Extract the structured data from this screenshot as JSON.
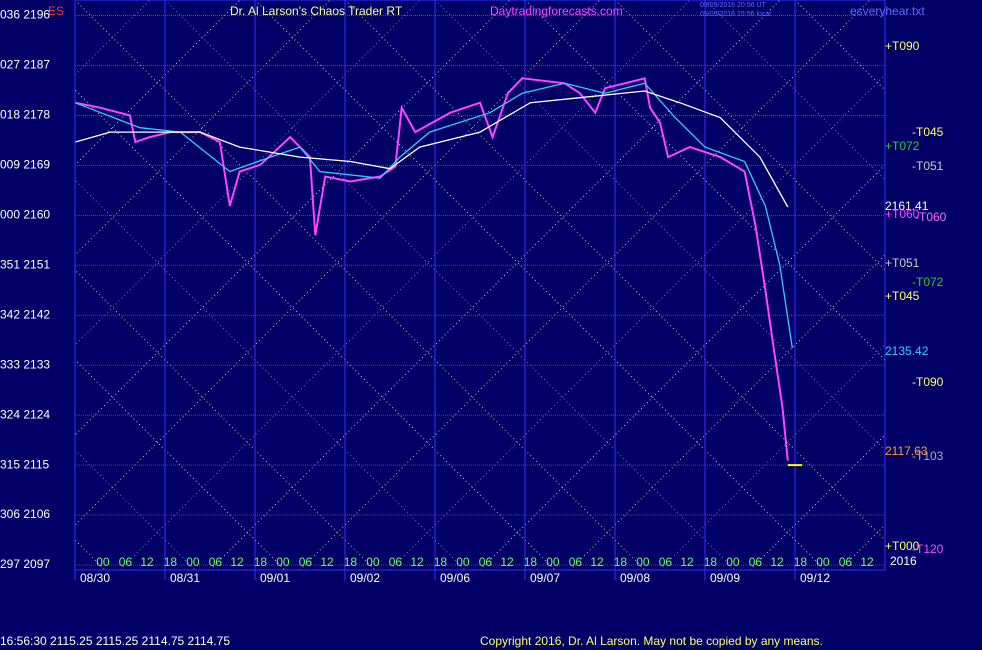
{
  "chart_data": {
    "type": "line",
    "symbol": "ES",
    "title": "Dr. Al Larson's Chaos Trader RT",
    "site": "Daytradingforecasts.com",
    "timestamps": [
      "09/09/2016 20:56 UT",
      "09/09/2016 15:56 local"
    ],
    "file": "esveryhear.txt",
    "ylim": [
      2096.1,
      2198.8
    ],
    "yticks": [
      {
        "value": 2196,
        "label": "036 2196"
      },
      {
        "value": 2187,
        "label": "027 2187"
      },
      {
        "value": 2178,
        "label": "018 2178"
      },
      {
        "value": 2169,
        "label": "009 2169"
      },
      {
        "value": 2160,
        "label": "000 2160"
      },
      {
        "value": 2151,
        "label": "351 2151"
      },
      {
        "value": 2142,
        "label": "342 2142"
      },
      {
        "value": 2133,
        "label": "333 2133"
      },
      {
        "value": 2124,
        "label": "324 2124"
      },
      {
        "value": 2115,
        "label": "315 2115"
      },
      {
        "value": 2106,
        "label": "306 2106"
      },
      {
        "value": 2097,
        "label": "297 2097"
      }
    ],
    "xlim": [
      0,
      9
    ],
    "xticks": [
      {
        "value": 0,
        "label": "08/30"
      },
      {
        "value": 1,
        "label": "08/31"
      },
      {
        "value": 2,
        "label": "09/01"
      },
      {
        "value": 3,
        "label": "09/02"
      },
      {
        "value": 4,
        "label": "09/06"
      },
      {
        "value": 5,
        "label": "09/07"
      },
      {
        "value": 6,
        "label": "09/08"
      },
      {
        "value": 7,
        "label": "09/09"
      },
      {
        "value": 8,
        "label": "09/12"
      }
    ],
    "hour_ticks": [
      {
        "value": 0.31,
        "label": "00"
      },
      {
        "value": 0.56,
        "label": "06"
      },
      {
        "value": 0.8,
        "label": "12"
      },
      {
        "value": 1.06,
        "label": "18"
      },
      {
        "value": 1.31,
        "label": "00"
      },
      {
        "value": 1.56,
        "label": "06"
      },
      {
        "value": 1.8,
        "label": "12"
      },
      {
        "value": 2.06,
        "label": "18"
      },
      {
        "value": 2.31,
        "label": "00"
      },
      {
        "value": 2.56,
        "label": "06"
      },
      {
        "value": 2.8,
        "label": "12"
      },
      {
        "value": 3.06,
        "label": "18"
      },
      {
        "value": 3.31,
        "label": "00"
      },
      {
        "value": 3.56,
        "label": "06"
      },
      {
        "value": 3.8,
        "label": "12"
      },
      {
        "value": 4.06,
        "label": "18"
      },
      {
        "value": 4.31,
        "label": "00"
      },
      {
        "value": 4.56,
        "label": "06"
      },
      {
        "value": 4.8,
        "label": "12"
      },
      {
        "value": 5.06,
        "label": "18"
      },
      {
        "value": 5.31,
        "label": "00"
      },
      {
        "value": 5.56,
        "label": "06"
      },
      {
        "value": 5.8,
        "label": "12"
      },
      {
        "value": 6.06,
        "label": "18"
      },
      {
        "value": 6.31,
        "label": "00"
      },
      {
        "value": 6.56,
        "label": "06"
      },
      {
        "value": 6.8,
        "label": "12"
      },
      {
        "value": 7.06,
        "label": "18"
      },
      {
        "value": 7.31,
        "label": "00"
      },
      {
        "value": 7.56,
        "label": "06"
      },
      {
        "value": 7.8,
        "label": "12"
      },
      {
        "value": 8.06,
        "label": "18"
      },
      {
        "value": 8.31,
        "label": "00"
      },
      {
        "value": 8.56,
        "label": "06"
      },
      {
        "value": 8.8,
        "label": "12"
      }
    ],
    "grid": true,
    "series": [
      {
        "color": "#ff44ff",
        "x": [
          0,
          0.28,
          0.61,
          0.67,
          0.83,
          1.06,
          1.39,
          1.61,
          1.72,
          1.83,
          2.06,
          2.39,
          2.5,
          2.61,
          2.67,
          2.78,
          3.06,
          3.39,
          3.56,
          3.63,
          3.78,
          4.17,
          4.5,
          4.64,
          4.81,
          4.97,
          5.44,
          5.61,
          5.78,
          5.89,
          6.33,
          6.39,
          6.5,
          6.59,
          6.83,
          7.17,
          7.44,
          7.56,
          7.67,
          7.78,
          7.86,
          7.92
        ],
        "values": [
          2180.3,
          2179.4,
          2178.0,
          2173.2,
          2174.1,
          2175.0,
          2175.0,
          2173.2,
          2161.7,
          2167.9,
          2169.1,
          2174.1,
          2172.3,
          2170.5,
          2156.4,
          2167.0,
          2166.1,
          2167.0,
          2168.8,
          2179.4,
          2175.0,
          2178.5,
          2180.3,
          2174.1,
          2182.0,
          2184.7,
          2183.8,
          2182.0,
          2178.5,
          2182.9,
          2184.7,
          2179.4,
          2176.7,
          2170.5,
          2172.3,
          2170.5,
          2167.9,
          2158.2,
          2146.6,
          2134.2,
          2125.5,
          2115.8
        ]
      },
      {
        "color": "#33ccff",
        "x": [
          0,
          0.72,
          1.17,
          1.72,
          2.17,
          2.5,
          2.72,
          3.39,
          3.61,
          3.94,
          4.61,
          4.97,
          5.44,
          5.89,
          6.33,
          6.67,
          7.0,
          7.44,
          7.67,
          7.83,
          7.97
        ],
        "values": [
          2180.3,
          2175.8,
          2175.0,
          2167.9,
          2170.5,
          2172.3,
          2167.9,
          2166.7,
          2170.5,
          2175.0,
          2178.5,
          2182.0,
          2183.8,
          2182.0,
          2183.8,
          2177.6,
          2172.3,
          2169.7,
          2161.7,
          2151.1,
          2136.1
        ]
      },
      {
        "color": "#ffffff",
        "x": [
          0,
          0.39,
          1.39,
          1.83,
          2.5,
          3.06,
          3.5,
          3.83,
          4.5,
          5.06,
          5.61,
          6.33,
          6.72,
          7.17,
          7.61,
          7.92
        ],
        "values": [
          2173.2,
          2175.0,
          2175.0,
          2172.3,
          2170.5,
          2169.7,
          2168.4,
          2172.3,
          2175.0,
          2180.3,
          2181.2,
          2182.4,
          2180.3,
          2177.6,
          2170.5,
          2161.5
        ]
      }
    ],
    "last_marker": {
      "x": [
        7.92,
        8.08
      ],
      "value": 2115.0,
      "color": "#ffff00"
    },
    "annotations": [
      {
        "text": "+T090",
        "color": "#ffff66"
      },
      {
        "text": "-T045",
        "color": "#ffff66"
      },
      {
        "text": "+T072",
        "color": "#33cc33"
      },
      {
        "text": "-T051",
        "color": "#cccccc"
      },
      {
        "text": "2161.41",
        "color": "#ffffff"
      },
      {
        "text": "+T060",
        "color": "#ff44ff"
      },
      {
        "text": "-T060",
        "color": "#ff66ff"
      },
      {
        "text": "+T051",
        "color": "#cccccc"
      },
      {
        "text": "-T072",
        "color": "#33cc33"
      },
      {
        "text": "+T045",
        "color": "#ffff66"
      },
      {
        "text": "2135.42",
        "color": "#33ccff"
      },
      {
        "text": "-T090",
        "color": "#ffff66"
      },
      {
        "text": "2117.63",
        "color": "#ff9933"
      },
      {
        "text": "-T103",
        "color": "#aaaaaa"
      },
      {
        "text": "+T000",
        "color": "#ffff66"
      },
      {
        "text": "-T120",
        "color": "#ff44ff"
      },
      {
        "text": "2016",
        "color": "#ffffff"
      }
    ],
    "status": "16:56:30  2115.25 2115.25 2114.75 2114.75",
    "copyright": "Copyright 2016, Dr. Al Larson. May not be copied by any means."
  }
}
